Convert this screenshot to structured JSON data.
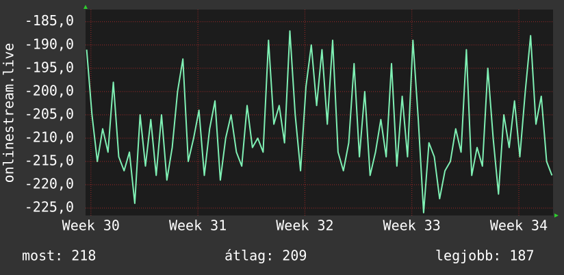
{
  "chart_data": {
    "type": "line",
    "y_label": "onlinestream.live",
    "x": [
      29.96,
      30.01,
      30.06,
      30.11,
      30.16,
      30.21,
      30.26,
      30.31,
      30.36,
      30.41,
      30.46,
      30.51,
      30.56,
      30.61,
      30.66,
      30.71,
      30.76,
      30.81,
      30.86,
      30.91,
      30.96,
      31.01,
      31.06,
      31.11,
      31.16,
      31.21,
      31.26,
      31.31,
      31.36,
      31.41,
      31.46,
      31.51,
      31.56,
      31.61,
      31.66,
      31.71,
      31.76,
      31.81,
      31.86,
      31.91,
      31.96,
      32.01,
      32.06,
      32.11,
      32.16,
      32.21,
      32.26,
      32.31,
      32.36,
      32.41,
      32.46,
      32.51,
      32.56,
      32.61,
      32.66,
      32.71,
      32.76,
      32.81,
      32.86,
      32.91,
      32.96,
      33.01,
      33.06,
      33.11,
      33.16,
      33.21,
      33.26,
      33.31,
      33.36,
      33.41,
      33.46,
      33.51,
      33.56,
      33.61,
      33.66,
      33.71,
      33.76,
      33.81,
      33.86,
      33.91,
      33.96,
      34.01,
      34.06,
      34.11,
      34.16,
      34.21,
      34.26,
      34.31
    ],
    "series": [
      {
        "color": "#7ff0b4",
        "values": [
          -191,
          -205,
          -215,
          -208,
          -213,
          -198,
          -214,
          -217,
          -213,
          -224,
          -205,
          -216,
          -206,
          -218,
          -205,
          -219,
          -212,
          -200,
          -193,
          -215,
          -210,
          -204,
          -218,
          -208,
          -202,
          -219,
          -210,
          -205,
          -213,
          -216,
          -203,
          -212,
          -210,
          -213,
          -189,
          -207,
          -203,
          -211,
          -187,
          -205,
          -217,
          -199,
          -190,
          -203,
          -191,
          -207,
          -189,
          -213,
          -217,
          -211,
          -194,
          -214,
          -200,
          -218,
          -213,
          -206,
          -214,
          -194,
          -216,
          -201,
          -214,
          -189,
          -206,
          -226,
          -211,
          -214,
          -223,
          -217,
          -215,
          -208,
          -213,
          -191,
          -218,
          -212,
          -216,
          -195,
          -210,
          -222,
          -205,
          -212,
          -202,
          -214,
          -200,
          -188,
          -207,
          -201,
          -215,
          -218
        ]
      }
    ],
    "xlim": [
      29.95,
      34.32
    ],
    "xticks": [
      {
        "value": 30,
        "label": "Week 30"
      },
      {
        "value": 31,
        "label": "Week 31"
      },
      {
        "value": 32,
        "label": "Week 32"
      },
      {
        "value": 33,
        "label": "Week 33"
      },
      {
        "value": 34,
        "label": "Week 34"
      }
    ],
    "ylim": [
      -226.6,
      -182.4
    ],
    "yticks": [
      {
        "value": -185,
        "label": "-185,0"
      },
      {
        "value": -190,
        "label": "-190,0"
      },
      {
        "value": -195,
        "label": "-195,0"
      },
      {
        "value": -200,
        "label": "-200,0"
      },
      {
        "value": -205,
        "label": "-205,0"
      },
      {
        "value": -210,
        "label": "-210,0"
      },
      {
        "value": -215,
        "label": "-215,0"
      },
      {
        "value": -220,
        "label": "-220,0"
      },
      {
        "value": -225,
        "label": "-225,0"
      }
    ],
    "grid": true,
    "footer": [
      "most: 218",
      "átlag: 209",
      "legjobb: 187"
    ]
  }
}
